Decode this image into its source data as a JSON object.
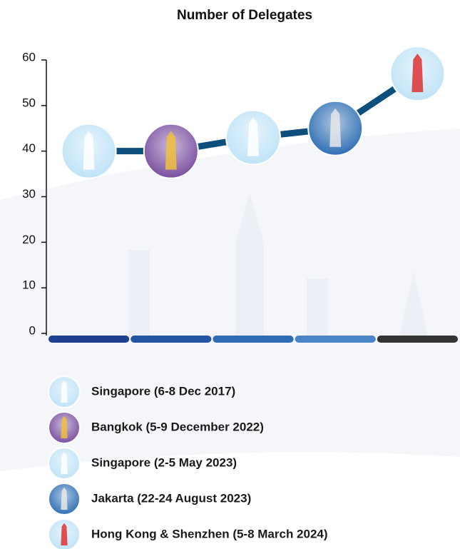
{
  "chart_data": {
    "type": "line",
    "title": "Number of Delegates",
    "categories": [
      "Singapore (6-8 Dec 2017)",
      "Bangkok (5-9 December 2022)",
      "Singapore (2-5 May 2023)",
      "Jakarta (22-24 August 2023)",
      "Hong Kong & Shenzhen (5-8 March 2024)"
    ],
    "values": [
      40,
      40,
      43,
      45,
      57
    ],
    "color": "#0d4f7c",
    "category_colors": [
      "#1f3f8f",
      "#2456a6",
      "#2f6bb6",
      "#4a86c6",
      "#333333"
    ],
    "icon_colors": [
      "#bfe3f7",
      "#7a4fa0",
      "#bfe3f7",
      "#2f6fb4",
      "#bfe3f7"
    ],
    "ylim": [
      0,
      60
    ],
    "yticks": [
      0,
      10,
      20,
      30,
      40,
      50,
      60
    ]
  }
}
